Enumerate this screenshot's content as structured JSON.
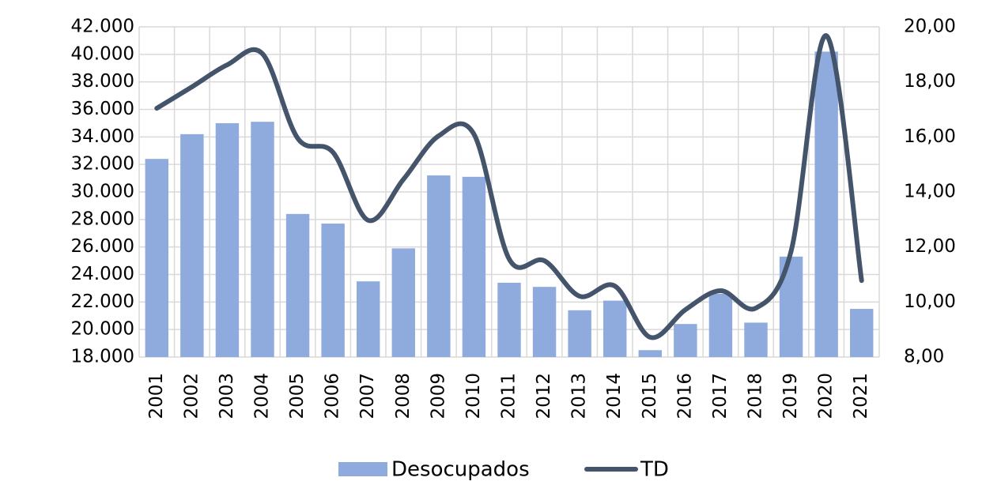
{
  "chart_data": {
    "type": "bar_line",
    "categories": [
      "2001",
      "2002",
      "2003",
      "2004",
      "2005",
      "2006",
      "2007",
      "2008",
      "2009",
      "2010",
      "2011",
      "2012",
      "2013",
      "2014",
      "2015",
      "2016",
      "2017",
      "2018",
      "2019",
      "2020",
      "2021"
    ],
    "series": [
      {
        "name": "Desocupados",
        "type": "bar",
        "color": "#8faadc",
        "values": [
          32400,
          34200,
          35000,
          35100,
          28400,
          27700,
          23500,
          25900,
          31200,
          31100,
          23400,
          23100,
          21400,
          22100,
          18500,
          20400,
          22600,
          20500,
          25300,
          40200,
          21500
        ]
      },
      {
        "name": "TD",
        "type": "line",
        "axis": "y2",
        "color": "#44546a",
        "values": [
          17.04,
          17.82,
          18.62,
          19.02,
          15.95,
          15.44,
          12.97,
          14.46,
          16.04,
          16.1,
          11.56,
          11.5,
          10.21,
          10.58,
          8.72,
          9.72,
          10.41,
          9.78,
          11.85,
          19.68,
          10.78
        ]
      }
    ],
    "ylim": [
      18000,
      42000
    ],
    "yticks": [
      {
        "value": 18000,
        "label": "18.000"
      },
      {
        "value": 20000,
        "label": "20.000"
      },
      {
        "value": 22000,
        "label": "22.000"
      },
      {
        "value": 24000,
        "label": "24.000"
      },
      {
        "value": 26000,
        "label": "26.000"
      },
      {
        "value": 28000,
        "label": "28.000"
      },
      {
        "value": 30000,
        "label": "30.000"
      },
      {
        "value": 32000,
        "label": "32.000"
      },
      {
        "value": 34000,
        "label": "34.000"
      },
      {
        "value": 36000,
        "label": "36.000"
      },
      {
        "value": 38000,
        "label": "38.000"
      },
      {
        "value": 40000,
        "label": "40.000"
      },
      {
        "value": 42000,
        "label": "42.000"
      }
    ],
    "y2lim": [
      8,
      20
    ],
    "y2ticks": [
      {
        "value": 8,
        "label": "8,00"
      },
      {
        "value": 10,
        "label": "10,00"
      },
      {
        "value": 12,
        "label": "12,00"
      },
      {
        "value": 14,
        "label": "14,00"
      },
      {
        "value": 16,
        "label": "16,00"
      },
      {
        "value": 18,
        "label": "18,00"
      },
      {
        "value": 20,
        "label": "20,00"
      }
    ],
    "grid": true,
    "legend": "bottom"
  }
}
